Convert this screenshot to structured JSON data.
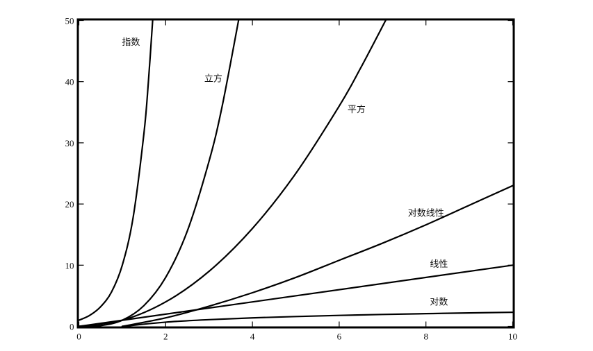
{
  "chart_data": {
    "type": "line",
    "title": "",
    "xlabel": "",
    "ylabel": "",
    "xlim": [
      0,
      10
    ],
    "ylim": [
      0,
      50
    ],
    "x_ticks": [
      "0",
      "2",
      "4",
      "6",
      "8",
      "10"
    ],
    "y_ticks": [
      "0",
      "10",
      "20",
      "30",
      "40",
      "50"
    ],
    "grid": false,
    "legend": "none",
    "line_color": "#000000",
    "series": [
      {
        "name": "指数",
        "x": [
          0,
          0.25,
          0.5,
          0.75,
          1.0,
          1.25,
          1.5,
          1.6,
          1.7
        ],
        "y": [
          1,
          1.8,
          3.2,
          5.6,
          10,
          17.8,
          31.6,
          39.8,
          50
        ]
      },
      {
        "name": "立方",
        "x": [
          0,
          0.5,
          1.0,
          1.5,
          2.0,
          2.5,
          3.0,
          3.3,
          3.68
        ],
        "y": [
          0,
          0.13,
          1,
          3.4,
          8,
          15.6,
          27,
          35.9,
          50
        ]
      },
      {
        "name": "平方",
        "x": [
          0,
          1,
          2,
          3,
          4,
          5,
          6,
          6.5,
          7.07
        ],
        "y": [
          0,
          1,
          4,
          9,
          16,
          25,
          36,
          42.3,
          50
        ]
      },
      {
        "name": "对数线性",
        "x": [
          1,
          2,
          3,
          4,
          5,
          6,
          7,
          8,
          9,
          10
        ],
        "y": [
          0,
          1.39,
          3.3,
          5.5,
          8,
          10.8,
          13.6,
          16.6,
          19.8,
          23
        ]
      },
      {
        "name": "线性",
        "x": [
          0,
          10
        ],
        "y": [
          0,
          10
        ]
      },
      {
        "name": "对数",
        "x": [
          1,
          2,
          3,
          4,
          5,
          6,
          7,
          8,
          9,
          10
        ],
        "y": [
          0,
          0.69,
          1.1,
          1.39,
          1.61,
          1.79,
          1.95,
          2.08,
          2.2,
          2.3
        ]
      }
    ]
  }
}
